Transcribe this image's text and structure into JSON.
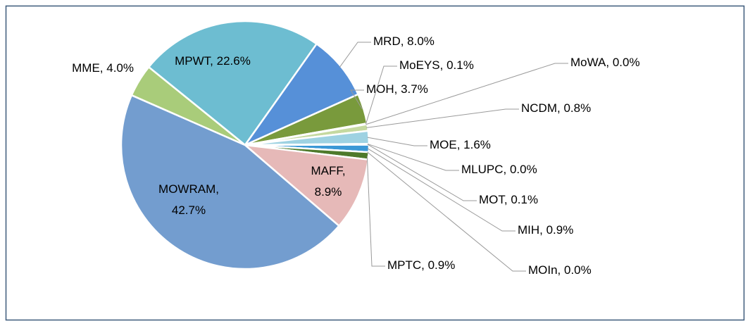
{
  "chart_data": {
    "type": "pie",
    "values": [
      22.6,
      8.0,
      3.7,
      0.1,
      0.0,
      0.8,
      1.6,
      0.0,
      0.1,
      0.9,
      0.0,
      0.9,
      8.9,
      42.7,
      4.0
    ],
    "value_labels": [
      "MPWT, 22.6%",
      "MRD, 8.0%",
      "MOH, 3.7%",
      "MoEYS, 0.1%",
      "MoWA, 0.0%",
      "NCDM, 0.8%",
      "MOE, 1.6%",
      "MLUPC, 0.0%",
      "MOT, 0.1%",
      "MIH, 0.9%",
      "MOIn, 0.0%",
      "MPTC, 0.9%",
      "MAFF,\n8.9%",
      "MOWRAM,\n42.7%",
      "MME, 4.0%"
    ],
    "colors": [
      "#6dbdd1",
      "#5690d8",
      "#799a3c",
      "#c8dba4",
      "#d6e4bd",
      "#c5d9a0",
      "#9ed2e2",
      "#b9dde8",
      "#5a8a3a",
      "#3b98d6",
      "#8cc0e0",
      "#4e7a2b",
      "#e6b9b8",
      "#739dcf",
      "#a9cc7a"
    ]
  }
}
